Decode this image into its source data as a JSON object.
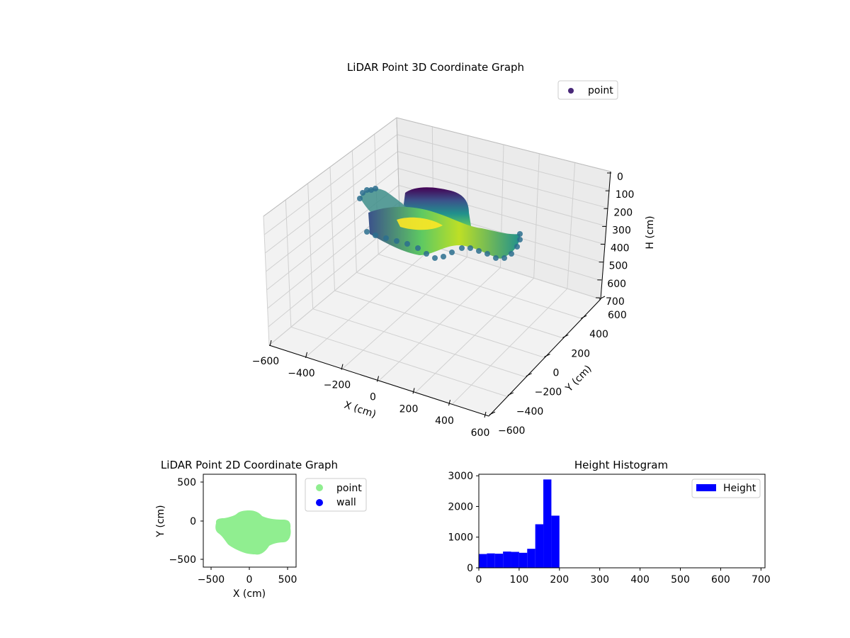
{
  "chart_data": [
    {
      "type": "scatter3d",
      "title": "LiDAR Point 3D Coordinate Graph",
      "xlabel": "X (cm)",
      "ylabel": "Y (cm)",
      "zlabel": "H (cm)",
      "xlim": [
        -600,
        600
      ],
      "ylim": [
        -600,
        600
      ],
      "zlim": [
        0,
        700
      ],
      "z_axis_inverted": true,
      "xticks": [
        "−600",
        "−400",
        "−200",
        "0",
        "200",
        "400",
        "600"
      ],
      "yticks": [
        "−600",
        "−400",
        "−200",
        "0",
        "200",
        "400",
        "600"
      ],
      "zticks": [
        "0",
        "100",
        "200",
        "300",
        "400",
        "500",
        "600",
        "700"
      ],
      "colormap": "viridis",
      "legend": {
        "placement": "top-right",
        "entries": [
          {
            "label": "point",
            "color": "#482878"
          }
        ]
      },
      "grid": true
    },
    {
      "type": "scatter",
      "title": "LiDAR Point 2D Coordinate Graph",
      "xlabel": "X (cm)",
      "ylabel": "Y (cm)",
      "xlim": [
        -600,
        600
      ],
      "ylim": [
        -600,
        600
      ],
      "xticks": [
        "−500",
        "0",
        "500"
      ],
      "yticks": [
        "500",
        "0",
        "−500"
      ],
      "series": [
        {
          "name": "point",
          "color": "#90ee90"
        },
        {
          "name": "wall",
          "color": "#0000ff"
        }
      ],
      "legend": {
        "placement": "outside-right"
      },
      "grid": false
    },
    {
      "type": "bar",
      "title": "Height Histogram",
      "bin_width": 20,
      "x": [
        10,
        30,
        50,
        70,
        90,
        110,
        130,
        150,
        170,
        190
      ],
      "values": [
        450,
        470,
        460,
        530,
        520,
        490,
        620,
        1420,
        2880,
        1700
      ],
      "xlim": [
        0,
        710
      ],
      "ylim": [
        0,
        3050
      ],
      "xticks": [
        "0",
        "100",
        "200",
        "300",
        "400",
        "500",
        "600",
        "700"
      ],
      "yticks": [
        "0",
        "1000",
        "2000",
        "3000"
      ],
      "color": "#0000ff",
      "legend": {
        "placement": "top-right",
        "entries": [
          {
            "label": "Height",
            "color": "#0000ff"
          }
        ]
      },
      "grid": false
    }
  ]
}
